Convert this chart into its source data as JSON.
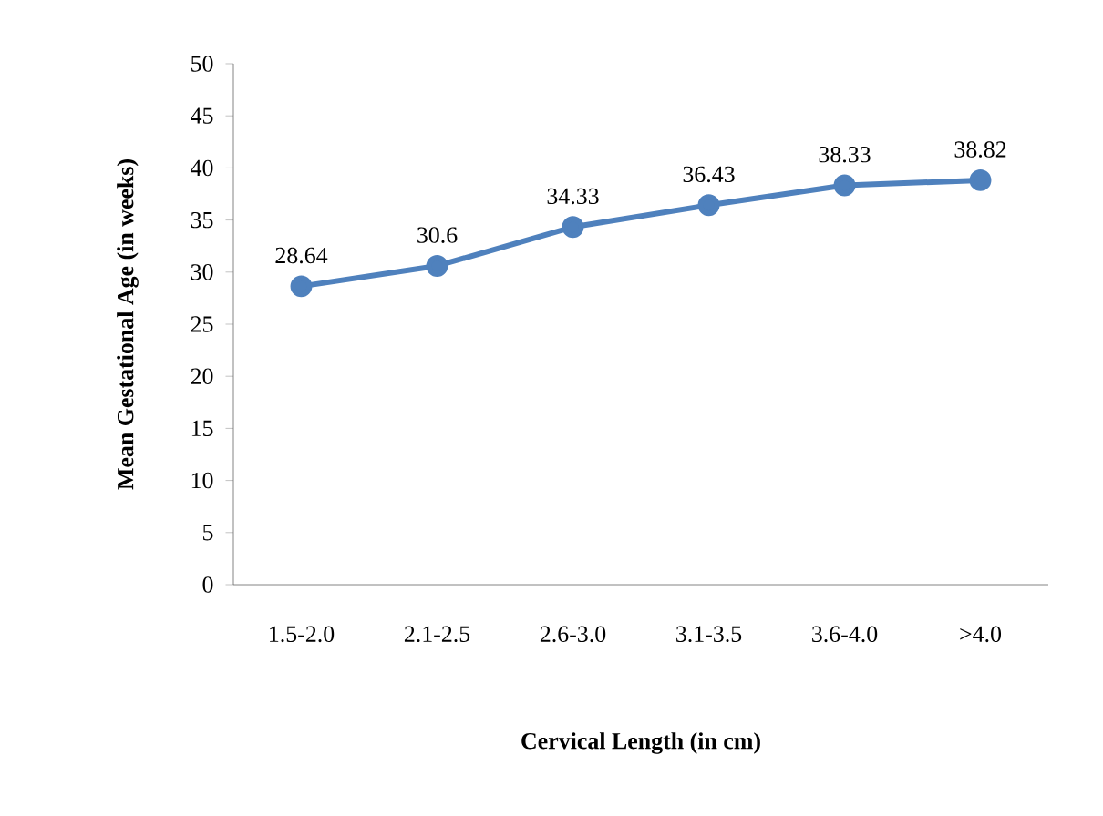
{
  "chart_data": {
    "type": "line",
    "xlabel": "Cervical Length (in cm)",
    "ylabel": "Mean Gestational Age (in weeks)",
    "categories": [
      "1.5-2.0",
      "2.1-2.5",
      "2.6-3.0",
      "3.1-3.5",
      "3.6-4.0",
      ">4.0"
    ],
    "values": [
      28.64,
      30.6,
      34.33,
      36.43,
      38.33,
      38.82
    ],
    "value_labels": [
      "28.64",
      "30.6",
      "34.33",
      "36.43",
      "38.33",
      "38.82"
    ],
    "color": "#4f81bd",
    "ylim": [
      0,
      50
    ],
    "yticks": [
      0,
      5,
      10,
      15,
      20,
      25,
      30,
      35,
      40,
      45,
      50
    ],
    "grid": false,
    "marker": "circle",
    "line_style": "solid"
  }
}
